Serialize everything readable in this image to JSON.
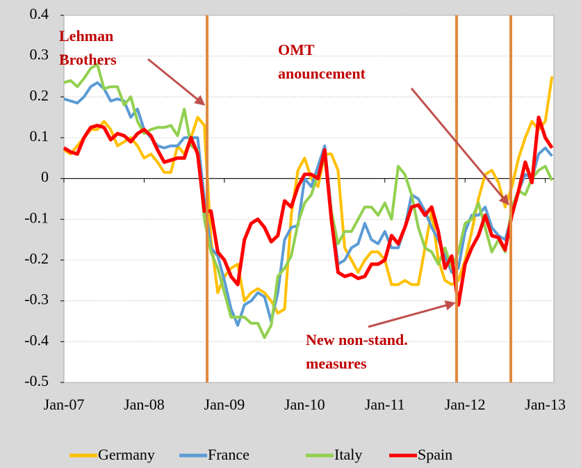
{
  "chart_data": {
    "type": "line",
    "categories": [
      "Jan-07",
      null,
      null,
      null,
      null,
      null,
      null,
      null,
      null,
      null,
      null,
      null,
      "Jan-08",
      null,
      null,
      null,
      null,
      null,
      null,
      null,
      null,
      null,
      null,
      null,
      "Jan-09",
      null,
      null,
      null,
      null,
      null,
      null,
      null,
      null,
      null,
      null,
      null,
      "Jan-10",
      null,
      null,
      null,
      null,
      null,
      null,
      null,
      null,
      null,
      null,
      null,
      "Jan-11",
      null,
      null,
      null,
      null,
      null,
      null,
      null,
      null,
      null,
      null,
      null,
      "Jan-12",
      null,
      null,
      null,
      null,
      null,
      null,
      null,
      null,
      null,
      null,
      null,
      "Jan-13",
      null
    ],
    "ylim": [
      -0.5,
      0.4
    ],
    "yticks": [
      -0.5,
      -0.4,
      -0.3,
      -0.2,
      -0.1,
      0,
      0.1,
      0.2,
      0.3,
      0.4
    ],
    "grid": true,
    "legend": "bottom",
    "annotations": [
      {
        "text": [
          "Lehman",
          "Brothers"
        ]
      },
      {
        "text": [
          "OMT",
          "anouncement"
        ]
      },
      {
        "text": [
          "New non-stand.",
          "measures"
        ]
      }
    ],
    "series": [
      {
        "name": "Germany",
        "color": "#ffc000",
        "values": [
          0.07,
          0.06,
          0.08,
          0.1,
          0.12,
          0.12,
          0.14,
          0.12,
          0.08,
          0.09,
          0.1,
          0.08,
          0.05,
          0.06,
          0.04,
          0.015,
          0.015,
          0.08,
          0.06,
          0.1,
          0.15,
          0.13,
          -0.15,
          -0.28,
          -0.24,
          -0.22,
          -0.21,
          -0.3,
          -0.28,
          -0.27,
          -0.28,
          -0.3,
          -0.33,
          -0.32,
          -0.09,
          0.02,
          0.05,
          0.0,
          -0.02,
          0.06,
          0.06,
          0.02,
          -0.17,
          -0.2,
          -0.23,
          -0.2,
          -0.18,
          -0.18,
          -0.2,
          -0.26,
          -0.26,
          -0.25,
          -0.26,
          -0.26,
          -0.17,
          -0.08,
          -0.2,
          -0.25,
          -0.26,
          -0.25,
          -0.2,
          -0.13,
          -0.05,
          0.01,
          0.02,
          -0.01,
          -0.07,
          -0.02,
          0.05,
          0.1,
          0.14,
          0.12,
          0.14,
          0.25
        ]
      },
      {
        "name": "France",
        "color": "#5b9bd5",
        "values": [
          0.195,
          0.19,
          0.185,
          0.2,
          0.225,
          0.235,
          0.22,
          0.19,
          0.195,
          0.19,
          0.15,
          0.17,
          0.12,
          0.1,
          0.08,
          0.075,
          0.08,
          0.08,
          0.1,
          0.1,
          0.1,
          -0.05,
          -0.17,
          -0.19,
          -0.25,
          -0.32,
          -0.36,
          -0.31,
          -0.3,
          -0.28,
          -0.29,
          -0.35,
          -0.28,
          -0.15,
          -0.12,
          -0.115,
          0.0,
          -0.02,
          0.03,
          0.08,
          -0.08,
          -0.21,
          -0.2,
          -0.17,
          -0.16,
          -0.11,
          -0.15,
          -0.16,
          -0.13,
          -0.17,
          -0.17,
          -0.12,
          -0.04,
          -0.05,
          -0.08,
          -0.12,
          -0.15,
          -0.19,
          -0.23,
          -0.22,
          -0.13,
          -0.09,
          -0.09,
          -0.07,
          -0.12,
          -0.14,
          -0.15,
          -0.09,
          -0.03,
          0.01,
          0.0,
          0.06,
          0.075,
          0.055
        ]
      },
      {
        "name": "Italy",
        "color": "#92d050",
        "values": [
          0.235,
          0.24,
          0.225,
          0.245,
          0.27,
          0.28,
          0.22,
          0.225,
          0.225,
          0.18,
          0.2,
          0.14,
          0.11,
          0.12,
          0.125,
          0.125,
          0.13,
          0.105,
          0.17,
          0.08,
          0.07,
          -0.1,
          -0.18,
          -0.22,
          -0.28,
          -0.34,
          -0.34,
          -0.34,
          -0.355,
          -0.355,
          -0.39,
          -0.36,
          -0.24,
          -0.22,
          -0.19,
          -0.11,
          -0.06,
          -0.04,
          0.01,
          0.05,
          -0.08,
          -0.16,
          -0.13,
          -0.13,
          -0.1,
          -0.07,
          -0.07,
          -0.09,
          -0.06,
          -0.1,
          0.03,
          0.01,
          -0.04,
          -0.12,
          -0.17,
          -0.18,
          -0.21,
          -0.17,
          -0.22,
          -0.18,
          -0.11,
          -0.1,
          -0.06,
          -0.12,
          -0.18,
          -0.15,
          -0.18,
          -0.07,
          -0.03,
          -0.04,
          0.0,
          0.02,
          0.03,
          -0.005
        ]
      },
      {
        "name": "Spain",
        "color": "#ff0000",
        "values": [
          0.075,
          0.065,
          0.06,
          0.1,
          0.125,
          0.13,
          0.125,
          0.095,
          0.11,
          0.105,
          0.09,
          0.11,
          0.12,
          0.105,
          0.07,
          0.04,
          0.045,
          0.05,
          0.05,
          0.1,
          0.06,
          -0.08,
          -0.08,
          -0.18,
          -0.2,
          -0.24,
          -0.26,
          -0.15,
          -0.11,
          -0.1,
          -0.12,
          -0.155,
          -0.14,
          -0.055,
          -0.07,
          -0.02,
          0.01,
          0.01,
          0.0,
          0.07,
          -0.1,
          -0.23,
          -0.24,
          -0.235,
          -0.245,
          -0.24,
          -0.21,
          -0.21,
          -0.2,
          -0.14,
          -0.16,
          -0.12,
          -0.07,
          -0.065,
          -0.09,
          -0.07,
          -0.13,
          -0.22,
          -0.19,
          -0.31,
          -0.21,
          -0.17,
          -0.14,
          -0.09,
          -0.14,
          -0.145,
          -0.175,
          -0.09,
          -0.03,
          0.04,
          -0.01,
          0.15,
          0.1,
          0.075
        ]
      }
    ]
  }
}
